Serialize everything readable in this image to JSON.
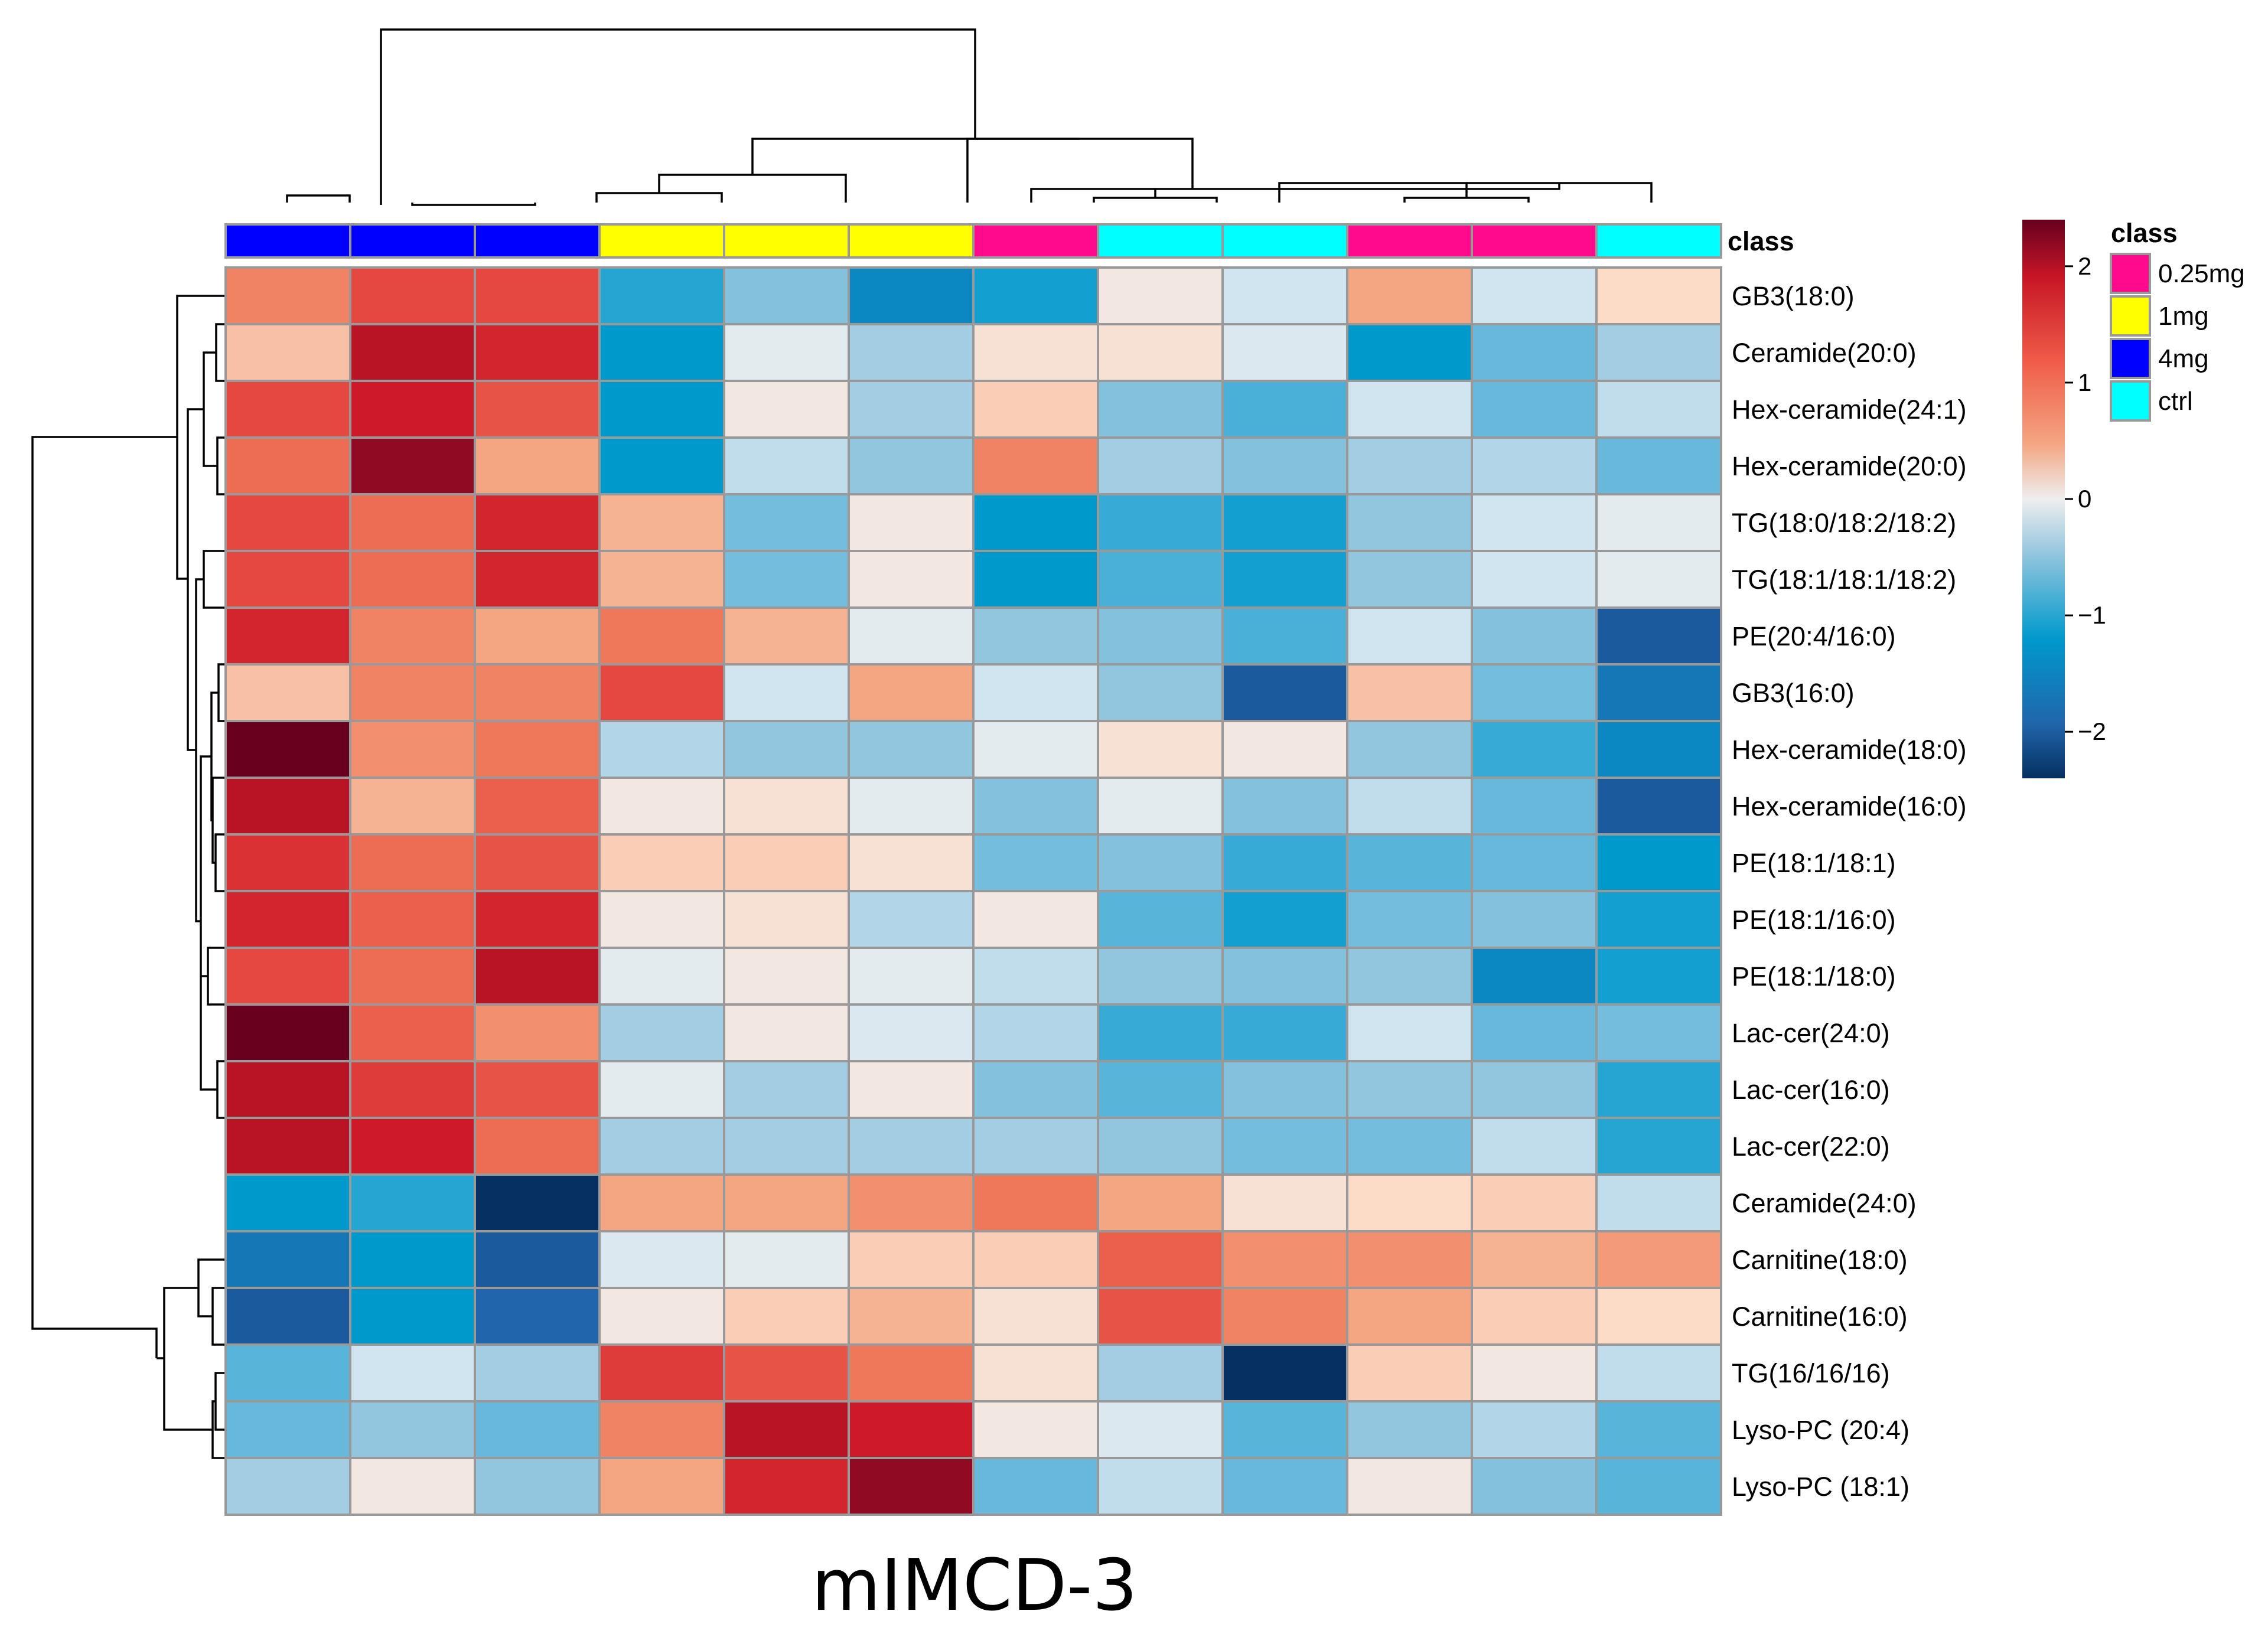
{
  "chart_data": {
    "type": "heatmap",
    "title": "mIMCD-3",
    "annotation_label": "class",
    "legend_title": "class",
    "classes": [
      {
        "name": "0.25mg",
        "color": "#ff0a8c"
      },
      {
        "name": "1mg",
        "color": "#ffff00"
      },
      {
        "name": "4mg",
        "color": "#0000ff"
      },
      {
        "name": "ctrl",
        "color": "#00ffff"
      }
    ],
    "column_classes": [
      "4mg",
      "4mg",
      "4mg",
      "1mg",
      "1mg",
      "1mg",
      "0.25mg",
      "ctrl",
      "ctrl",
      "0.25mg",
      "0.25mg",
      "ctrl"
    ],
    "rows": [
      "GB3(18:0)",
      "Ceramide(20:0)",
      "Hex-ceramide(24:1)",
      "Hex-ceramide(20:0)",
      "TG(18:0/18:2/18:2)",
      "TG(18:1/18:1/18:2)",
      "PE(20:4/16:0)",
      "GB3(16:0)",
      "Hex-ceramide(18:0)",
      "Hex-ceramide(16:0)",
      "PE(18:1/18:1)",
      "PE(18:1/16:0)",
      "PE(18:1/18:0)",
      "Lac-cer(24:0)",
      "Lac-cer(16:0)",
      "Lac-cer(22:0)",
      "Ceramide(24:0)",
      "Carnitine(18:0)",
      "Carnitine(16:0)",
      "TG(16/16/16)",
      "Lyso-PC (20:4)",
      "Lyso-PC (18:1)"
    ],
    "values": [
      [
        1.0,
        1.5,
        1.5,
        -1.4,
        -0.8,
        -1.7,
        -1.5,
        0.1,
        -0.3,
        0.7,
        -0.3,
        0.3
      ],
      [
        0.5,
        2.0,
        1.8,
        -1.6,
        -0.1,
        -0.6,
        0.2,
        0.2,
        -0.2,
        -1.6,
        -1.0,
        -0.6
      ],
      [
        1.5,
        1.9,
        1.4,
        -1.6,
        0.1,
        -0.6,
        0.4,
        -0.8,
        -1.2,
        -0.3,
        -1.0,
        -0.4
      ],
      [
        1.2,
        2.2,
        0.7,
        -1.6,
        -0.4,
        -0.7,
        1.0,
        -0.6,
        -0.8,
        -0.6,
        -0.5,
        -1.0
      ],
      [
        1.5,
        1.2,
        1.8,
        0.6,
        -0.9,
        0.1,
        -1.6,
        -1.3,
        -1.5,
        -0.7,
        -0.3,
        -0.1
      ],
      [
        1.5,
        1.2,
        1.8,
        0.6,
        -0.9,
        0.1,
        -1.6,
        -1.2,
        -1.5,
        -0.7,
        -0.3,
        -0.1
      ],
      [
        1.8,
        1.0,
        0.7,
        1.1,
        0.6,
        -0.1,
        -0.7,
        -0.8,
        -1.2,
        -0.3,
        -0.8,
        -2.0
      ],
      [
        0.5,
        1.0,
        1.0,
        1.5,
        -0.3,
        0.7,
        -0.3,
        -0.7,
        -2.0,
        0.5,
        -0.9,
        -1.8
      ],
      [
        2.4,
        0.9,
        1.1,
        -0.5,
        -0.7,
        -0.7,
        -0.1,
        0.2,
        0.1,
        -0.7,
        -1.3,
        -1.7
      ],
      [
        2.0,
        0.6,
        1.3,
        0.1,
        0.2,
        -0.1,
        -0.8,
        -0.1,
        -0.8,
        -0.4,
        -1.0,
        -2.0
      ],
      [
        1.7,
        1.2,
        1.4,
        0.4,
        0.4,
        0.2,
        -0.9,
        -0.8,
        -1.3,
        -1.1,
        -1.0,
        -1.6
      ],
      [
        1.8,
        1.3,
        1.8,
        0.1,
        0.2,
        -0.5,
        0.1,
        -1.1,
        -1.5,
        -0.9,
        -0.8,
        -1.5
      ],
      [
        1.5,
        1.2,
        2.0,
        -0.1,
        0.1,
        -0.1,
        -0.4,
        -0.7,
        -0.8,
        -0.7,
        -1.7,
        -1.5
      ],
      [
        2.5,
        1.3,
        0.9,
        -0.6,
        0.1,
        -0.2,
        -0.5,
        -1.3,
        -1.3,
        -0.3,
        -1.0,
        -0.9
      ],
      [
        2.0,
        1.6,
        1.4,
        -0.1,
        -0.6,
        0.1,
        -0.8,
        -1.1,
        -0.8,
        -0.7,
        -0.7,
        -1.4
      ],
      [
        2.0,
        1.9,
        1.2,
        -0.6,
        -0.6,
        -0.6,
        -0.6,
        -0.7,
        -0.9,
        -0.9,
        -0.4,
        -1.4
      ],
      [
        -1.6,
        -1.4,
        -2.4,
        0.7,
        0.7,
        0.9,
        1.1,
        0.7,
        0.2,
        0.3,
        0.4,
        -0.4
      ],
      [
        -1.8,
        -1.6,
        -2.0,
        -0.2,
        -0.1,
        0.4,
        0.4,
        1.3,
        0.9,
        0.9,
        0.6,
        0.8
      ],
      [
        -2.0,
        -1.6,
        -1.9,
        0.1,
        0.4,
        0.6,
        0.2,
        1.4,
        1.0,
        0.7,
        0.4,
        0.3
      ],
      [
        -1.1,
        -0.3,
        -0.6,
        1.6,
        1.4,
        1.1,
        0.2,
        -0.6,
        -2.4,
        0.4,
        0.1,
        -0.4
      ],
      [
        -1.0,
        -0.7,
        -1.0,
        1.0,
        2.0,
        1.9,
        0.1,
        -0.2,
        -1.1,
        -0.7,
        -0.5,
        -1.1
      ],
      [
        -0.6,
        0.1,
        -0.7,
        0.7,
        1.8,
        2.2,
        -1.0,
        -0.4,
        -1.0,
        0.1,
        -0.8,
        -1.1
      ]
    ],
    "colorbar": {
      "ticks": [
        2,
        1,
        0,
        -1,
        -2
      ],
      "tick_labels": [
        "2",
        "1",
        "0",
        "−1",
        "−2"
      ],
      "range": [
        -2.4,
        2.4
      ]
    }
  }
}
